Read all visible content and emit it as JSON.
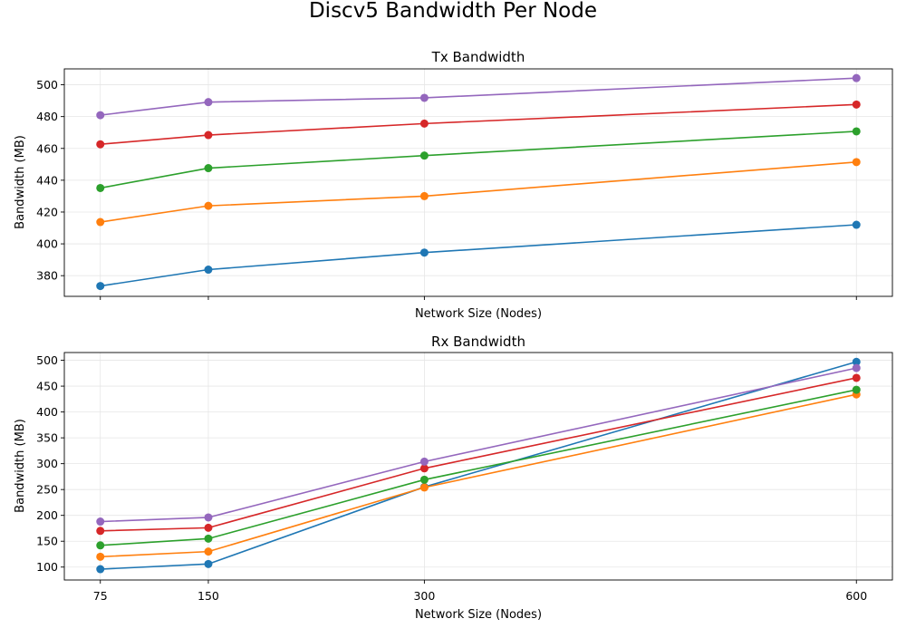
{
  "figure": {
    "suptitle": "Discv5 Bandwidth Per Node"
  },
  "chart_data": [
    {
      "type": "line",
      "title": "Tx Bandwidth",
      "xlabel": "Network Size (Nodes)",
      "ylabel": "Bandwidth (MB)",
      "x": [
        75,
        150,
        300,
        600
      ],
      "xticks": [
        75,
        150,
        300,
        600
      ],
      "show_xtick_labels": false,
      "xlim": [
        50,
        625
      ],
      "ylim": [
        367,
        510
      ],
      "yticks": [
        380,
        400,
        420,
        440,
        460,
        480,
        500
      ],
      "grid": true,
      "markers": true,
      "series": [
        {
          "color": "#1f77b4",
          "values": [
            373.5,
            383.8,
            394.5,
            412.0
          ]
        },
        {
          "color": "#ff7f0e",
          "values": [
            413.7,
            423.9,
            430.0,
            451.4
          ]
        },
        {
          "color": "#2ca02c",
          "values": [
            435.1,
            447.6,
            455.5,
            470.7
          ]
        },
        {
          "color": "#d62728",
          "values": [
            462.6,
            468.4,
            475.6,
            487.6
          ]
        },
        {
          "color": "#9467bd",
          "values": [
            480.9,
            489.1,
            491.8,
            504.2
          ]
        }
      ]
    },
    {
      "type": "line",
      "title": "Rx Bandwidth",
      "xlabel": "Network Size (Nodes)",
      "ylabel": "Bandwidth (MB)",
      "x": [
        75,
        150,
        300,
        600
      ],
      "xticks": [
        75,
        150,
        300,
        600
      ],
      "show_xtick_labels": true,
      "xlim": [
        50,
        625
      ],
      "ylim": [
        75,
        515
      ],
      "yticks": [
        100,
        150,
        200,
        250,
        300,
        350,
        400,
        450,
        500
      ],
      "grid": true,
      "markers": true,
      "series": [
        {
          "color": "#1f77b4",
          "values": [
            96,
            106,
            255,
            497
          ]
        },
        {
          "color": "#ff7f0e",
          "values": [
            120,
            130,
            254,
            434
          ]
        },
        {
          "color": "#2ca02c",
          "values": [
            142,
            155,
            269,
            443
          ]
        },
        {
          "color": "#d62728",
          "values": [
            170,
            176,
            291,
            466
          ]
        },
        {
          "color": "#9467bd",
          "values": [
            188,
            196,
            304,
            485
          ]
        }
      ]
    }
  ]
}
